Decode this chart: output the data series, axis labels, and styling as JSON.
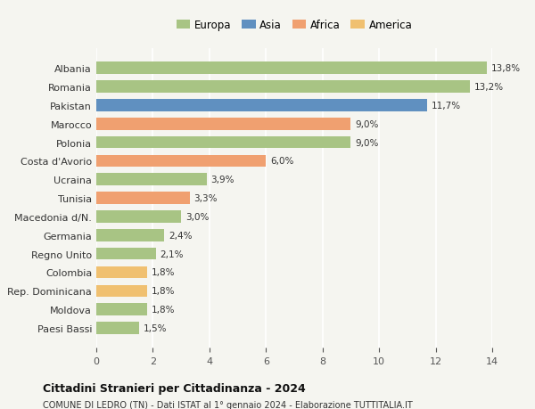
{
  "categories": [
    "Paesi Bassi",
    "Moldova",
    "Rep. Dominicana",
    "Colombia",
    "Regno Unito",
    "Germania",
    "Macedonia d/N.",
    "Tunisia",
    "Ucraina",
    "Costa d'Avorio",
    "Polonia",
    "Marocco",
    "Pakistan",
    "Romania",
    "Albania"
  ],
  "values": [
    1.5,
    1.8,
    1.8,
    1.8,
    2.1,
    2.4,
    3.0,
    3.3,
    3.9,
    6.0,
    9.0,
    9.0,
    11.7,
    13.2,
    13.8
  ],
  "labels": [
    "1,5%",
    "1,8%",
    "1,8%",
    "1,8%",
    "2,1%",
    "2,4%",
    "3,0%",
    "3,3%",
    "3,9%",
    "6,0%",
    "9,0%",
    "9,0%",
    "11,7%",
    "13,2%",
    "13,8%"
  ],
  "colors": [
    "#a8c484",
    "#a8c484",
    "#f0c070",
    "#f0c070",
    "#a8c484",
    "#a8c484",
    "#a8c484",
    "#f0a070",
    "#a8c484",
    "#f0a070",
    "#a8c484",
    "#f0a070",
    "#6090c0",
    "#a8c484",
    "#a8c484"
  ],
  "legend": [
    {
      "label": "Europa",
      "color": "#a8c484"
    },
    {
      "label": "Asia",
      "color": "#6090c0"
    },
    {
      "label": "Africa",
      "color": "#f0a070"
    },
    {
      "label": "America",
      "color": "#f0c070"
    }
  ],
  "xlim": [
    0,
    14
  ],
  "xticks": [
    0,
    2,
    4,
    6,
    8,
    10,
    12,
    14
  ],
  "title": "Cittadini Stranieri per Cittadinanza - 2024",
  "subtitle": "COMUNE DI LEDRO (TN) - Dati ISTAT al 1° gennaio 2024 - Elaborazione TUTTITALIA.IT",
  "bg_color": "#f5f5f0",
  "bar_height": 0.65
}
